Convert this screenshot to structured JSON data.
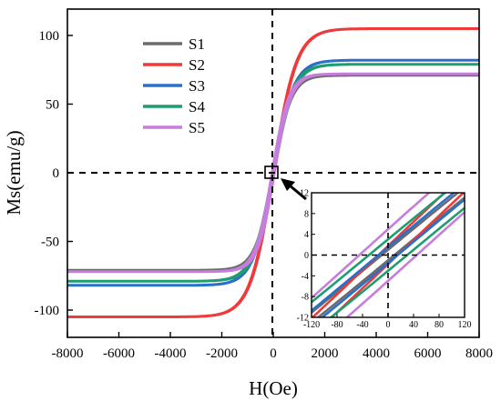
{
  "chart_data": {
    "type": "line",
    "xlabel": "H(Oe)",
    "ylabel": "Ms(emu/g)",
    "xlim": [
      -8000,
      8000
    ],
    "ylim": [
      -110,
      110
    ],
    "xticks": [
      -8000,
      -6000,
      -4000,
      -2000,
      0,
      2000,
      4000,
      6000,
      8000
    ],
    "yticks": [
      -100,
      -50,
      0,
      50,
      100
    ],
    "legend_position": "top-left",
    "grid": false,
    "series": [
      {
        "name": "S1",
        "color": "#6b6b6b",
        "ms": 71,
        "hc": 10,
        "hsat": 700
      },
      {
        "name": "S2",
        "color": "#ee3a3a",
        "ms": 105,
        "hc": 15,
        "hsat": 900
      },
      {
        "name": "S3",
        "color": "#2a6fc9",
        "ms": 82,
        "hc": 15,
        "hsat": 800
      },
      {
        "name": "S4",
        "color": "#1e9e6e",
        "ms": 79,
        "hc": 30,
        "hsat": 780
      },
      {
        "name": "S5",
        "color": "#c77ddb",
        "ms": 72,
        "hc": 45,
        "hsat": 650
      }
    ],
    "inset": {
      "xlim": [
        -120,
        120
      ],
      "ylim": [
        -12,
        12
      ],
      "xticks": [
        -120,
        -80,
        -40,
        0,
        40,
        80,
        120
      ],
      "yticks": [
        -12,
        -8,
        -4,
        0,
        4,
        8,
        12
      ]
    }
  }
}
